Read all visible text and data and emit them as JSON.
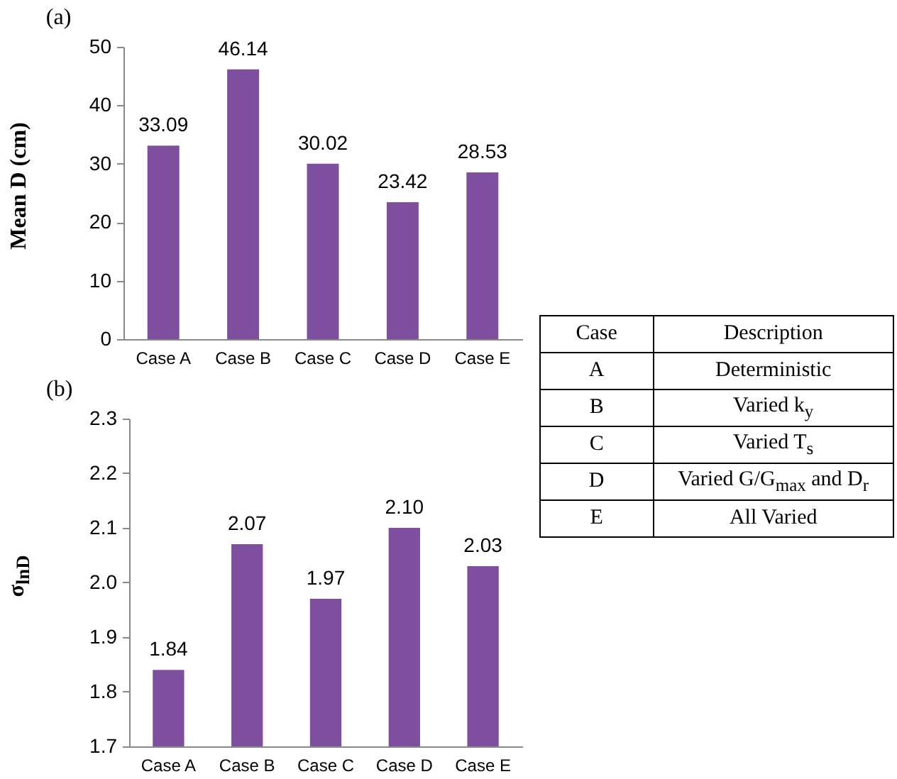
{
  "chart_data": [
    {
      "type": "bar",
      "title": "(a)",
      "ylabel": "Mean D (cm)",
      "categories": [
        "Case A",
        "Case B",
        "Case C",
        "Case D",
        "Case E"
      ],
      "values": [
        33.09,
        46.14,
        30.02,
        23.42,
        28.53
      ],
      "color": "#7e4f9f",
      "ylim": [
        0,
        50
      ],
      "yticks": [
        0,
        10,
        20,
        30,
        40,
        50
      ],
      "data_labels": true
    },
    {
      "type": "bar",
      "title": "(b)",
      "ylabel": "σ$_{lnD}$",
      "categories": [
        "Case A",
        "Case B",
        "Case C",
        "Case D",
        "Case E"
      ],
      "values": [
        1.84,
        2.07,
        1.97,
        2.1,
        2.03
      ],
      "value_labels": [
        "1.84",
        "2.07",
        "1.97",
        "2.10",
        "2.03"
      ],
      "color": "#7e4f9f",
      "ylim": [
        1.7,
        2.3
      ],
      "yticks": [
        {
          "value": 1.7,
          "label": "1.7"
        },
        {
          "value": 1.8,
          "label": "1.8"
        },
        {
          "value": 1.9,
          "label": "1.9"
        },
        {
          "value": 2.0,
          "label": "2.0"
        },
        {
          "value": 2.1,
          "label": "2.1"
        },
        {
          "value": 2.2,
          "label": "2.2"
        },
        {
          "value": 2.3,
          "label": "2.3"
        }
      ]
    },
    {
      "type": "other",
      "annotations": [
        "Case",
        "Description",
        "A",
        "Deterministic",
        "B",
        "Varied k$_{y}$",
        "C",
        "Varied T$_{s}$",
        "D",
        "Varied G/G$_{max}$ and D$_{r}$",
        "E",
        "All Varied"
      ]
    }
  ]
}
